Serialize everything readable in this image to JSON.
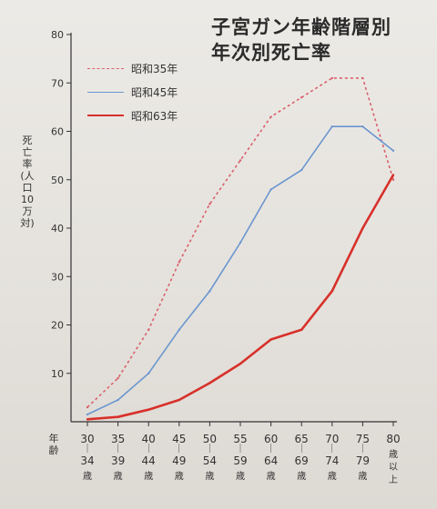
{
  "chart_data": {
    "type": "line",
    "title": [
      "子宮ガン年齢階層別",
      "年次別死亡率"
    ],
    "ylabel": "死亡率(人口10万対)",
    "xlabel": "年齢",
    "ylim": [
      0,
      80
    ],
    "yticks": [
      10,
      20,
      30,
      40,
      50,
      60,
      70,
      80
    ],
    "categories": [
      {
        "lo": "30",
        "hi": "34",
        "suffix": "歳"
      },
      {
        "lo": "35",
        "hi": "39",
        "suffix": "歳"
      },
      {
        "lo": "40",
        "hi": "44",
        "suffix": "歳"
      },
      {
        "lo": "45",
        "hi": "49",
        "suffix": "歳"
      },
      {
        "lo": "50",
        "hi": "54",
        "suffix": "歳"
      },
      {
        "lo": "55",
        "hi": "59",
        "suffix": "歳"
      },
      {
        "lo": "60",
        "hi": "64",
        "suffix": "歳"
      },
      {
        "lo": "65",
        "hi": "69",
        "suffix": "歳"
      },
      {
        "lo": "70",
        "hi": "74",
        "suffix": "歳"
      },
      {
        "lo": "75",
        "hi": "79",
        "suffix": "歳"
      },
      {
        "lo": "80",
        "hi": "",
        "suffix": "歳以上"
      }
    ],
    "series": [
      {
        "name": "昭和35年",
        "style": "dashed",
        "color": "#d9606a",
        "values": [
          3,
          9,
          19,
          33,
          45,
          54,
          63,
          67,
          71,
          71,
          50
        ]
      },
      {
        "name": "昭和45年",
        "style": "solid",
        "color": "#6b96cf",
        "values": [
          1.5,
          4.5,
          10,
          19,
          27,
          37,
          48,
          52,
          61,
          61,
          56
        ]
      },
      {
        "name": "昭和63年",
        "style": "solid",
        "color": "#d8302a",
        "values": [
          0.5,
          1,
          2.5,
          4.5,
          8,
          12,
          17,
          19,
          27,
          40,
          51
        ]
      }
    ],
    "legend_position": "top-left",
    "grid": false
  }
}
